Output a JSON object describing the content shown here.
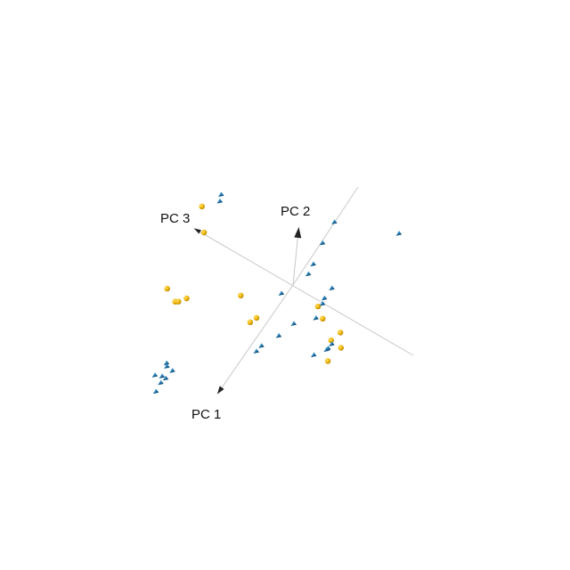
{
  "chart_data": {
    "type": "scatter",
    "dimensions": 3,
    "axis_labels": [
      "PC 1",
      "PC 2",
      "PC 3"
    ],
    "grid": false,
    "legend": "none",
    "colors": {
      "axis": "#c8c8c8",
      "axis_arrow": "#222222",
      "series_a": "#f2b705",
      "series_a_shade": "#b07c00",
      "series_b": "#2f88c0",
      "series_b_shade": "#1a5a85"
    },
    "series": [
      {
        "marker": "sphere",
        "color": "#f2b705",
        "points": [
          [
            -0.3,
            0.35,
            2.7
          ],
          [
            0.05,
            0.2,
            2.35
          ],
          [
            0.95,
            -0.75,
            2.55
          ],
          [
            1.05,
            -0.85,
            2.25
          ],
          [
            1.0,
            -0.9,
            2.2
          ],
          [
            0.85,
            -0.95,
            2.1
          ],
          [
            0.45,
            -0.55,
            1.0
          ],
          [
            0.9,
            0.05,
            0.25
          ],
          [
            1.05,
            0.1,
            0.3
          ],
          [
            0.1,
            -0.45,
            -0.9
          ],
          [
            0.3,
            -0.65,
            -1.3
          ],
          [
            0.35,
            -0.6,
            -1.6
          ],
          [
            0.2,
            -0.35,
            -1.45
          ],
          [
            0.65,
            -0.7,
            -1.5
          ],
          [
            0.1,
            -0.05,
            -0.75
          ]
        ]
      },
      {
        "marker": "cone",
        "color": "#2f88c0",
        "points": [
          [
            -0.5,
            2.35,
            -0.55
          ],
          [
            -0.9,
            2.4,
            -1.95
          ],
          [
            -0.2,
            1.95,
            -0.5
          ],
          [
            0.0,
            1.35,
            -0.45
          ],
          [
            0.15,
            1.2,
            -0.45
          ],
          [
            -0.45,
            0.9,
            2.35
          ],
          [
            -0.35,
            0.85,
            2.3
          ],
          [
            0.2,
            -0.15,
            0.15
          ],
          [
            -0.05,
            0.65,
            -0.95
          ],
          [
            0.05,
            0.3,
            -0.85
          ],
          [
            0.1,
            0.15,
            -0.85
          ],
          [
            0.3,
            -0.1,
            -0.85
          ],
          [
            0.5,
            -0.3,
            -1.45
          ],
          [
            0.6,
            -0.4,
            -1.4
          ],
          [
            0.55,
            -0.45,
            -1.4
          ],
          [
            0.85,
            -0.3,
            -1.25
          ],
          [
            0.6,
            -0.1,
            -0.5
          ],
          [
            0.9,
            -0.2,
            -0.35
          ],
          [
            1.15,
            -0.4,
            -0.1
          ],
          [
            1.25,
            -0.5,
            -0.05
          ],
          [
            2.15,
            -0.85,
            1.6
          ],
          [
            2.35,
            -1.0,
            1.55
          ],
          [
            2.35,
            -1.0,
            1.45
          ],
          [
            2.45,
            -1.05,
            1.5
          ],
          [
            2.4,
            -1.0,
            1.7
          ],
          [
            2.2,
            -0.85,
            1.55
          ],
          [
            2.6,
            -1.15,
            1.5
          ],
          [
            2.2,
            -0.9,
            1.4
          ]
        ]
      }
    ]
  }
}
